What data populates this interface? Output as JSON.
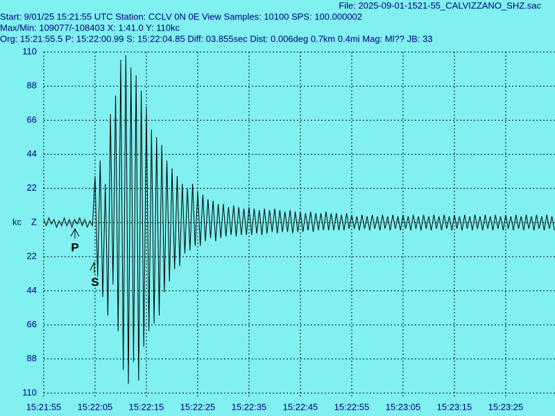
{
  "header": {
    "file": "File: 2025-09-01-1521-55_CALVIZZANO_SHZ.sac",
    "start": "Start: 9/01/25 15:21:55 UTC Station: CCLV 0N 0E View Samples: 10100  SPS: 100.000002",
    "maxmin": "Max/Min: 109077/-108403 X: 1:41.0 Y: 110kc",
    "origin": "Org: 15:21:55.5 P: 15:22:00.99 S: 15:22:04.85 Diff: 03.855sec Dist: 0.006deg 0.7km 0.4mi  Mag: Ml?? JB: 33"
  },
  "chart_data": {
    "type": "line",
    "y_label": "kc",
    "background": "#80f0f0",
    "grid": true,
    "annotations": [
      "P",
      "S"
    ],
    "xlim": [
      0,
      99.6
    ],
    "ylim": [
      -110,
      110
    ],
    "xticks": [
      {
        "value": 0,
        "label": "15:21:55"
      },
      {
        "value": 10,
        "label": "15:22:05"
      },
      {
        "value": 20,
        "label": "15:22:15"
      },
      {
        "value": 30,
        "label": "15:22:25"
      },
      {
        "value": 40,
        "label": "15:22:35"
      },
      {
        "value": 50,
        "label": "15:22:45"
      },
      {
        "value": 60,
        "label": "15:22:55"
      },
      {
        "value": 70,
        "label": "15:23:05"
      },
      {
        "value": 80,
        "label": "15:23:15"
      },
      {
        "value": 90,
        "label": "15:23:25"
      }
    ],
    "yticks": [
      110,
      88,
      66,
      44,
      22,
      {
        "value": 0,
        "label": "Z"
      },
      {
        "value": -22,
        "label": "22"
      },
      {
        "value": -44,
        "label": "44"
      },
      {
        "value": -66,
        "label": "66"
      },
      {
        "value": -88,
        "label": "88"
      },
      {
        "value": -110,
        "label": "110"
      }
    ],
    "x": [
      0,
      0.5,
      1,
      1.5,
      2,
      2.5,
      3,
      3.5,
      4,
      4.5,
      5,
      5.5,
      6,
      6.5,
      7,
      7.5,
      8,
      8.5,
      9,
      9.5,
      10,
      10.5,
      11,
      11.5,
      12,
      12.5,
      13,
      13.5,
      14,
      14.5,
      15,
      15.5,
      16,
      16.5,
      17,
      17.5,
      18,
      18.5,
      19,
      19.5,
      20,
      20.5,
      21,
      21.5,
      22,
      22.5,
      23,
      23.5,
      24,
      24.5,
      25,
      25.5,
      26,
      26.5,
      27,
      27.5,
      28,
      28.5,
      29,
      29.5,
      30,
      30.5,
      31,
      31.5,
      32,
      32.5,
      33,
      33.5,
      34,
      34.5,
      35,
      35.5,
      36,
      36.5,
      37,
      37.5,
      38,
      38.5,
      39,
      39.5,
      40,
      40.5,
      41,
      41.5,
      42,
      42.5,
      43,
      43.5,
      44,
      44.5,
      45,
      45.5,
      46,
      46.5,
      47,
      47.5,
      48,
      48.5,
      49,
      49.5,
      50,
      50.5,
      51,
      51.5,
      52,
      52.5,
      53,
      53.5,
      54,
      54.5,
      55,
      55.5,
      56,
      56.5,
      57,
      57.5,
      58,
      58.5,
      59,
      59.5,
      60,
      60.5,
      61,
      61.5,
      62,
      62.5,
      63,
      63.5,
      64,
      64.5,
      65,
      65.5,
      66,
      66.5,
      67,
      67.5,
      68,
      68.5,
      69,
      69.5,
      70,
      70.5,
      71,
      71.5,
      72,
      72.5,
      73,
      73.5,
      74,
      74.5,
      75,
      75.5,
      76,
      76.5,
      77,
      77.5,
      78,
      78.5,
      79,
      79.5,
      80,
      80.5,
      81,
      81.5,
      82,
      82.5,
      83,
      83.5,
      84,
      84.5,
      85,
      85.5,
      86,
      86.5,
      87,
      87.5,
      88,
      88.5,
      89,
      89.5,
      90,
      90.5,
      91,
      91.5,
      92,
      92.5,
      93,
      93.5,
      94,
      94.5,
      95,
      95.5,
      96,
      96.5,
      97,
      97.5,
      98,
      98.5,
      99,
      99.5
    ],
    "series": [
      {
        "color": "#000000",
        "values": [
          2,
          -2,
          3,
          -1,
          2,
          -3,
          1,
          -2,
          3,
          -2,
          2,
          -3,
          2,
          -1,
          3,
          -2,
          2,
          -3,
          1,
          -2,
          30,
          -35,
          40,
          -48,
          25,
          -60,
          70,
          -40,
          82,
          -70,
          105,
          -95,
          108,
          -104,
          100,
          -90,
          95,
          -102,
          85,
          -80,
          75,
          -70,
          60,
          -65,
          55,
          -60,
          50,
          -45,
          40,
          -38,
          35,
          -30,
          30,
          -28,
          25,
          -20,
          22,
          -18,
          25,
          -15,
          20,
          -15,
          18,
          -12,
          15,
          -10,
          14,
          -12,
          12,
          -10,
          12,
          -9,
          10,
          -8,
          11,
          -9,
          10,
          -8,
          9,
          -8,
          10,
          -8,
          9,
          -7,
          8,
          -8,
          9,
          -7,
          8,
          -6,
          9,
          -7,
          8,
          -6,
          7,
          -6,
          8,
          -7,
          7,
          -6,
          7,
          -6,
          6,
          -5,
          7,
          -6,
          6,
          -5,
          6,
          -5,
          7,
          -5,
          6,
          -5,
          6,
          -5,
          5,
          -5,
          6,
          -4,
          5,
          -4,
          4,
          -5,
          5,
          -4,
          4,
          -5,
          5,
          -4,
          4,
          -5,
          5,
          -4,
          4,
          -5,
          5,
          -4,
          4,
          -5,
          5,
          -4,
          4,
          -5,
          5,
          -4,
          4,
          -5,
          5,
          -4,
          4,
          -5,
          5,
          -4,
          4,
          -5,
          5,
          -4,
          4,
          -5,
          5,
          -4,
          4,
          -5,
          5,
          -4,
          4,
          -5,
          5,
          -4,
          4,
          -5,
          5,
          -4,
          4,
          -5,
          5,
          -4,
          4,
          -5,
          5,
          -4,
          4,
          -5,
          5,
          -4,
          4,
          -5,
          5,
          -4,
          4,
          -5,
          5,
          -4,
          4,
          -5,
          5,
          -4,
          4,
          -5
        ]
      }
    ]
  }
}
